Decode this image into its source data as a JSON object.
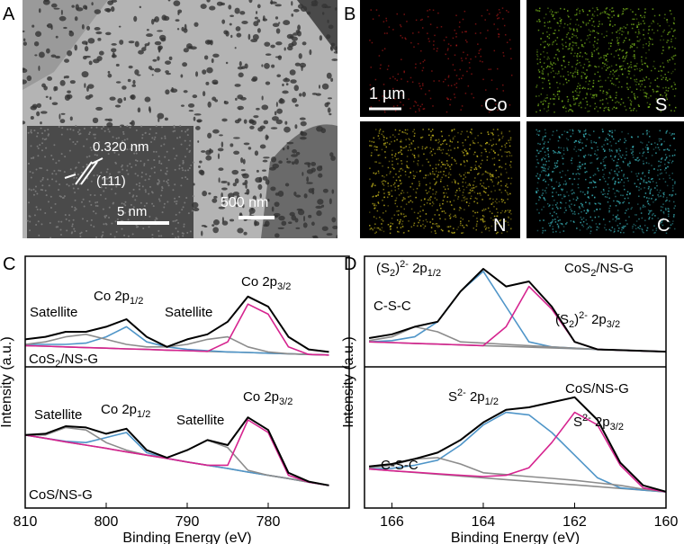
{
  "panels": {
    "A": {
      "label": "A",
      "lattice": [
        "0.320 nm",
        "(111)"
      ],
      "scale_bars": [
        "5 nm",
        "500 nm"
      ]
    },
    "B": {
      "label": "B",
      "scale_bar": "1 µm",
      "maps": [
        "Co",
        "S",
        "N",
        "C"
      ]
    }
  },
  "chart_data": [
    {
      "type": "line",
      "panel_label": "C",
      "xlabel": "Binding Energy (eV)",
      "ylabel": "Intensity (a.u.)",
      "xlim": [
        810,
        770
      ],
      "xticks": [
        810,
        800,
        790,
        780
      ],
      "ylim": [
        0,
        100
      ],
      "x": [
        810,
        807.5,
        805,
        802.5,
        800,
        797.5,
        795,
        792.5,
        790,
        787.5,
        785,
        782.5,
        780,
        777.5,
        775,
        772.5
      ],
      "series": [
        {
          "color": "#8c8c8c",
          "values": [
            64.5,
            64.3,
            64,
            63.7,
            63.5,
            63.2,
            63,
            62.7,
            62.5,
            62.2,
            62,
            61.8,
            61.5,
            61.3,
            61,
            60.8
          ]
        },
        {
          "color": "#4f95c8",
          "values": [
            65,
            65,
            65,
            65.5,
            68,
            72,
            66,
            64,
            63,
            62.5,
            62,
            61.8,
            61.5,
            61.3,
            61,
            60.8
          ]
        },
        {
          "color": "#8c8c8c",
          "values": [
            65,
            66,
            68,
            69,
            67,
            65,
            64,
            64,
            65,
            67,
            68,
            64,
            62,
            61.3,
            61,
            60.8
          ]
        },
        {
          "color": "#d6248f",
          "values": [
            64.5,
            64.3,
            64,
            63.7,
            63.5,
            63.2,
            63,
            62.7,
            62.5,
            62.2,
            66,
            81,
            77,
            64,
            61,
            60.8
          ]
        },
        {
          "color": "#000000",
          "values": [
            67,
            68,
            70,
            70,
            72,
            75,
            68,
            64,
            67,
            69,
            74,
            84,
            80,
            68,
            63,
            62
          ]
        },
        {
          "color": "#8c8c8c",
          "values": [
            29,
            27.7,
            26.3,
            25,
            23.7,
            22.3,
            21,
            19.7,
            18.3,
            17,
            15.7,
            14.3,
            13,
            11.7,
            10.3,
            9
          ]
        },
        {
          "color": "#4f95c8",
          "values": [
            29,
            27.7,
            26.5,
            26,
            28,
            30,
            22,
            19.7,
            18.3,
            17,
            15.7,
            14.3,
            13,
            11.7,
            10.3,
            9
          ]
        },
        {
          "color": "#8c8c8c",
          "values": [
            29,
            29,
            32,
            31,
            26,
            23,
            21,
            20,
            23,
            27,
            24,
            15,
            13,
            11.7,
            10.3,
            9
          ]
        },
        {
          "color": "#d6248f",
          "values": [
            29,
            27.7,
            26.3,
            25,
            23.7,
            22.3,
            21,
            19.7,
            18.3,
            17,
            17,
            35,
            30,
            13,
            10.3,
            9
          ]
        },
        {
          "color": "#000000",
          "values": [
            29,
            29.5,
            32.5,
            32,
            29.5,
            31.5,
            23,
            20,
            23,
            27,
            25,
            36,
            31,
            14,
            10.5,
            9
          ]
        }
      ],
      "annotations": [
        [
          {
            "t": "Satellite"
          }
        ],
        [
          {
            "t": "Co 2p"
          },
          {
            "t": "1/2",
            "s": "sub"
          }
        ],
        [
          {
            "t": "Satellite"
          }
        ],
        [
          {
            "t": "Co 2p"
          },
          {
            "t": "3/2",
            "s": "sub"
          }
        ],
        [
          {
            "t": "CoS"
          },
          {
            "t": "2",
            "s": "sub"
          },
          {
            "t": "/NS-G"
          }
        ],
        [
          {
            "t": "Satellite"
          }
        ],
        [
          {
            "t": "Co 2p"
          },
          {
            "t": "1/2",
            "s": "sub"
          }
        ],
        [
          {
            "t": "Satellite"
          }
        ],
        [
          {
            "t": "Co 2p"
          },
          {
            "t": "3/2",
            "s": "sub"
          }
        ],
        [
          {
            "t": "CoS/NS-G"
          }
        ]
      ]
    },
    {
      "type": "line",
      "panel_label": "D",
      "xlabel": "Binding Energy (eV)",
      "ylabel": "Intensity (a.u.)",
      "xlim": [
        166.6,
        160
      ],
      "xticks": [
        166,
        164,
        162,
        160
      ],
      "ylim": [
        0,
        100
      ],
      "x": [
        166.5,
        166,
        165.5,
        165,
        164.5,
        164,
        163.5,
        163,
        162.5,
        162,
        161.5,
        161,
        160.5,
        160
      ],
      "series": [
        {
          "color": "#8c8c8c",
          "values": [
            66,
            65.7,
            65.4,
            65.1,
            64.8,
            64.5,
            64.2,
            63.9,
            63.6,
            63.3,
            63,
            62.7,
            62.4,
            62.1
          ]
        },
        {
          "color": "#4f95c8",
          "values": [
            66,
            66.5,
            68,
            74,
            86,
            94,
            80,
            66,
            64,
            63.5,
            63,
            62.7,
            62.4,
            62.1
          ]
        },
        {
          "color": "#8c8c8c",
          "values": [
            66.5,
            68,
            72,
            70,
            66,
            65.5,
            65,
            64.5,
            64,
            63.5,
            63,
            62.7,
            62.4,
            62.1
          ]
        },
        {
          "color": "#d6248f",
          "values": [
            66,
            65.7,
            65.4,
            65.1,
            64.8,
            64.5,
            72,
            88,
            79,
            66,
            63,
            62.7,
            62.4,
            62.1
          ]
        },
        {
          "color": "#000000",
          "values": [
            67.5,
            69,
            72,
            74,
            86,
            95,
            88,
            90,
            80,
            66,
            63,
            62.7,
            62.4,
            62.1
          ]
        },
        {
          "color": "#8c8c8c",
          "values": [
            15.5,
            14.8,
            14.1,
            13.4,
            12.7,
            12,
            11.3,
            10.6,
            9.9,
            9.2,
            8.5,
            7.8,
            7.1,
            6.4
          ]
        },
        {
          "color": "#4f95c8",
          "values": [
            15.5,
            15.8,
            17,
            19,
            25,
            33,
            38,
            37,
            30,
            21,
            12,
            8,
            7.1,
            6.4
          ]
        },
        {
          "color": "#8c8c8c",
          "values": [
            16,
            17,
            19.5,
            20,
            17.5,
            14,
            13.3,
            12.5,
            11.8,
            11,
            10,
            9,
            7.5,
            6.4
          ]
        },
        {
          "color": "#d6248f",
          "values": [
            15.5,
            14.8,
            14.2,
            13.6,
            13,
            12.5,
            13,
            16,
            26,
            38,
            33,
            17,
            8,
            6.4
          ]
        },
        {
          "color": "#000000",
          "values": [
            16.5,
            17.5,
            19.5,
            22,
            27,
            34,
            39,
            40,
            42,
            44,
            35,
            18,
            9,
            6.5
          ]
        }
      ],
      "annotations": [
        [
          {
            "t": "(S"
          },
          {
            "t": "2",
            "s": "sub"
          },
          {
            "t": ")"
          },
          {
            "t": "2-",
            "s": "sup"
          },
          {
            "t": " 2p"
          },
          {
            "t": "1/2",
            "s": "sub"
          }
        ],
        [
          {
            "t": "CoS"
          },
          {
            "t": "2",
            "s": "sub"
          },
          {
            "t": "/NS-G"
          }
        ],
        [
          {
            "t": "C-S-C"
          }
        ],
        [
          {
            "t": "(S"
          },
          {
            "t": "2",
            "s": "sub"
          },
          {
            "t": ")"
          },
          {
            "t": "2-",
            "s": "sup"
          },
          {
            "t": " 2p"
          },
          {
            "t": "3/2",
            "s": "sub"
          }
        ],
        [
          {
            "t": "S"
          },
          {
            "t": "2-",
            "s": "sup"
          },
          {
            "t": " 2p"
          },
          {
            "t": "1/2",
            "s": "sub"
          }
        ],
        [
          {
            "t": "CoS/NS-G"
          }
        ],
        [
          {
            "t": "S"
          },
          {
            "t": "2-",
            "s": "sup"
          },
          {
            "t": " 2p"
          },
          {
            "t": "3/2",
            "s": "sub"
          }
        ],
        [
          {
            "t": "C-S-C"
          }
        ]
      ]
    }
  ]
}
